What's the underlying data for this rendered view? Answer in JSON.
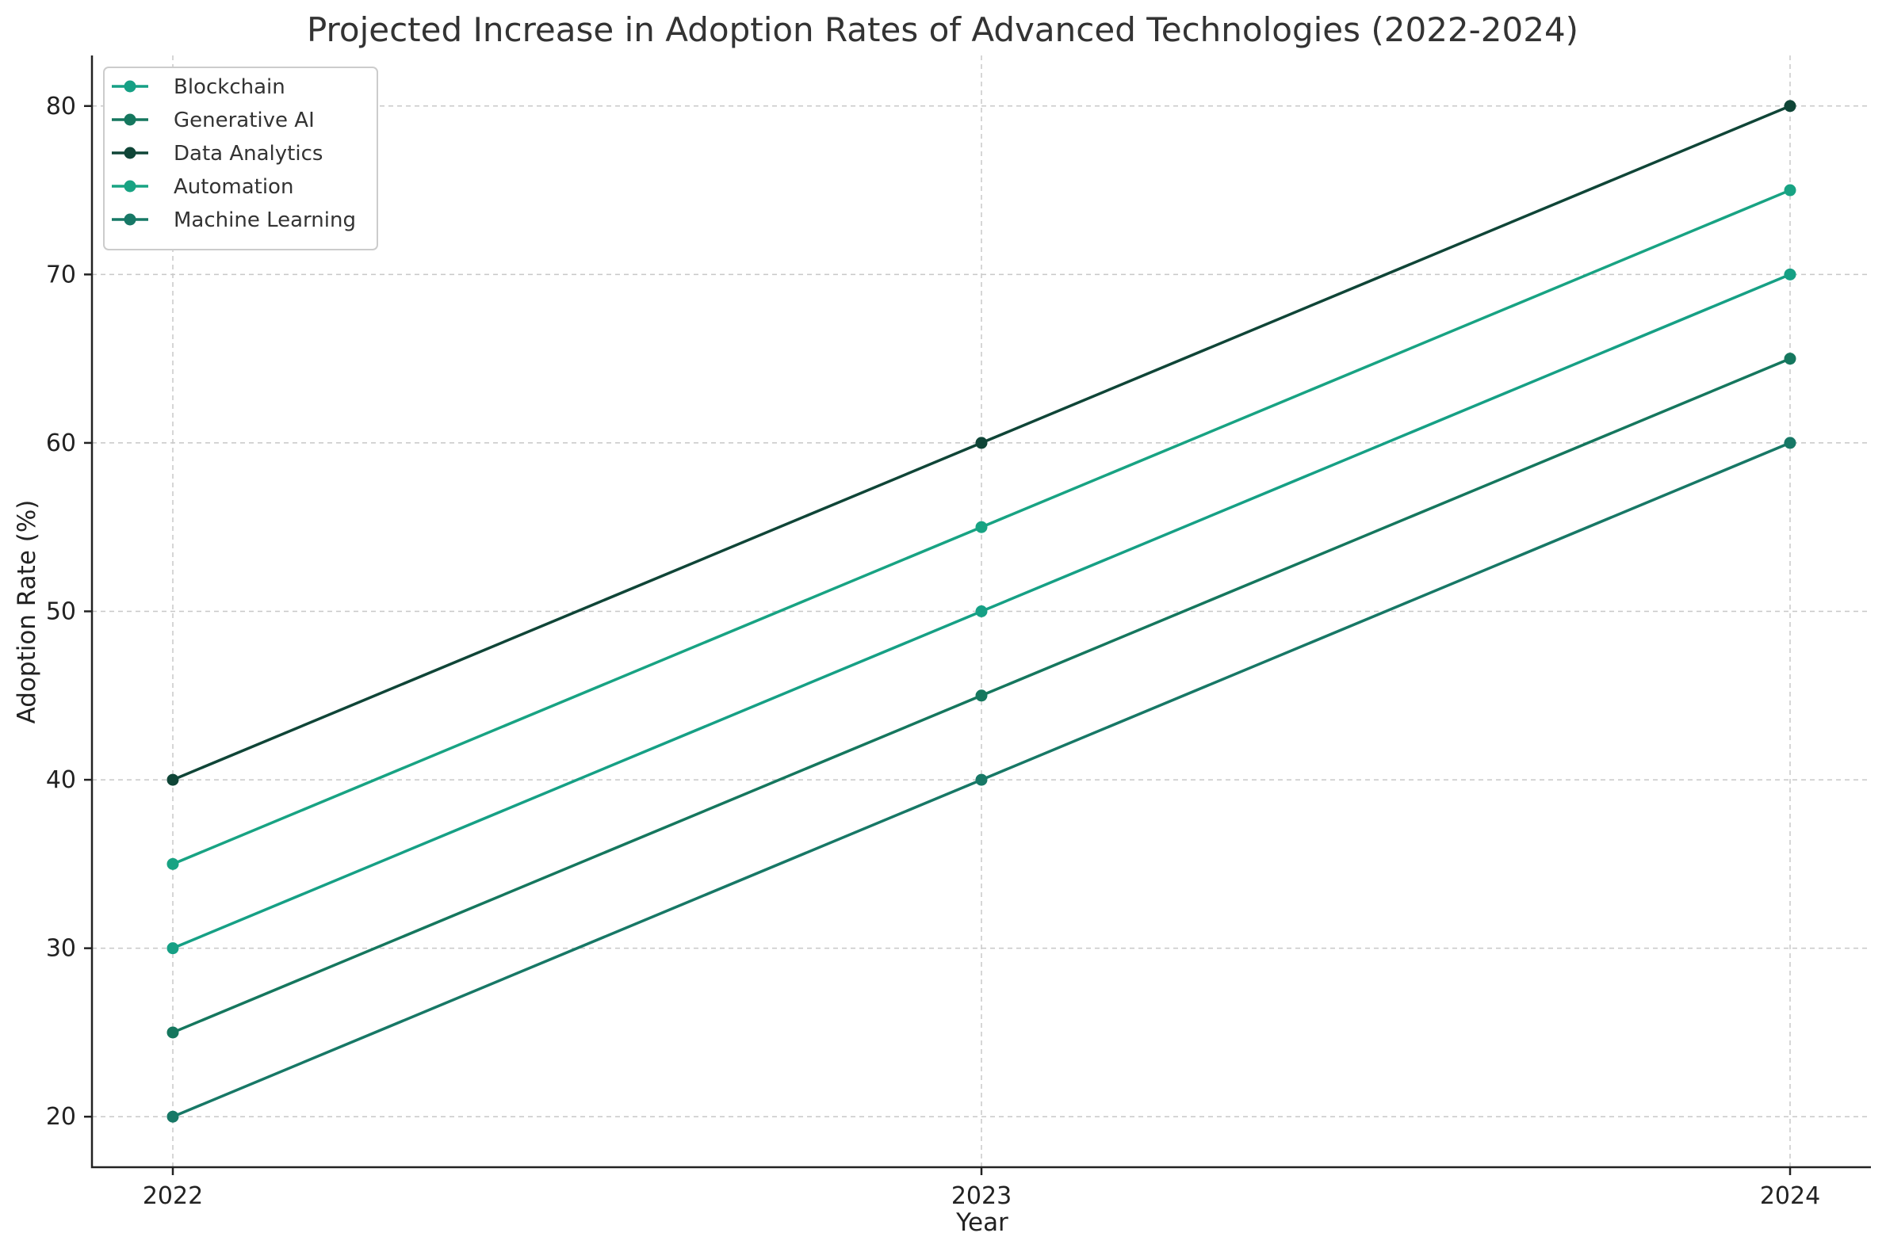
{
  "chart_data": {
    "type": "line",
    "title": "Projected Increase in Adoption Rates of Advanced Technologies (2022-2024)",
    "xlabel": "Year",
    "ylabel": "Adoption Rate (%)",
    "x": [
      "2022",
      "2023",
      "2024"
    ],
    "xlim": [
      -0.1,
      2.1
    ],
    "ylim": [
      17,
      83
    ],
    "yticks": [
      20,
      30,
      40,
      50,
      60,
      70,
      80
    ],
    "grid": true,
    "legend": "top-left",
    "series": [
      {
        "name": "Blockchain",
        "values": [
          30,
          50,
          70
        ],
        "color": "#16a085"
      },
      {
        "name": "Generative AI",
        "values": [
          25,
          45,
          65
        ],
        "color": "#15775e"
      },
      {
        "name": "Data Analytics",
        "values": [
          40,
          60,
          80
        ],
        "color": "#0f4537"
      },
      {
        "name": "Automation",
        "values": [
          35,
          55,
          75
        ],
        "color": "#18a383"
      },
      {
        "name": "Machine Learning",
        "values": [
          20,
          40,
          60
        ],
        "color": "#177866"
      }
    ]
  }
}
